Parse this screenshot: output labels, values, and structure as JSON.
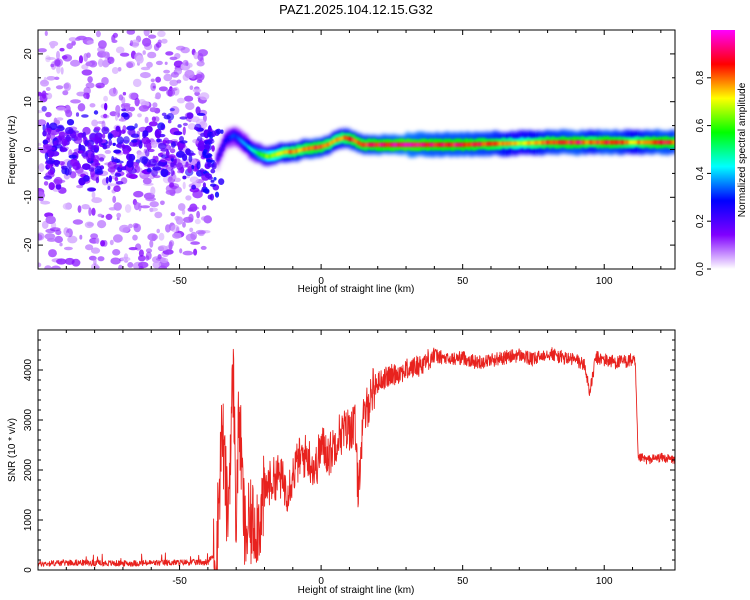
{
  "figure": {
    "title": "PAZ1.2025.104.12.15.G32"
  },
  "chart_data": [
    {
      "type": "heatmap",
      "title": "PAZ1.2025.104.12.15.G32",
      "xlabel": "Height of straight line (km)",
      "ylabel": "Frequency (Hz)",
      "xlim": [
        -100,
        125
      ],
      "ylim": [
        -25,
        25
      ],
      "xticks": [
        -50,
        0,
        50,
        100
      ],
      "yticks": [
        -20,
        -10,
        0,
        10,
        20
      ],
      "grid": false,
      "colorbar": {
        "label": "Normalized spectral amplitude",
        "range": [
          0,
          1
        ],
        "ticks": [
          0.0,
          0.2,
          0.4,
          0.6,
          0.8
        ],
        "colors": [
          "#ffffff",
          "#8000ff",
          "#0000ff",
          "#00ffff",
          "#00ff00",
          "#ffff00",
          "#ff0000",
          "#ff00ff"
        ]
      },
      "ridge": {
        "x": [
          -37,
          -34,
          -31,
          -28,
          -25,
          -22,
          -19,
          -16,
          -13,
          -10,
          -7,
          -4,
          -1,
          2,
          5,
          8,
          11,
          14,
          20,
          30,
          40,
          50,
          60,
          70,
          80,
          90,
          95,
          100,
          105,
          110,
          115,
          120,
          125
        ],
        "frequency": [
          -2,
          2,
          3,
          1.5,
          0,
          -1,
          -1.5,
          -1,
          -0.5,
          -0.5,
          0,
          0.3,
          0.5,
          1,
          2,
          2.5,
          2,
          1,
          1,
          1,
          1,
          1,
          1.2,
          1.3,
          1.5,
          1.5,
          1.5,
          1.5,
          1.5,
          1.5,
          1.5,
          1.5,
          1.5
        ],
        "amplitude": [
          0.25,
          0.3,
          0.35,
          0.4,
          0.5,
          0.6,
          0.7,
          0.75,
          0.8,
          0.85,
          0.85,
          0.9,
          0.9,
          0.85,
          0.8,
          0.85,
          0.9,
          0.9,
          0.95,
          1.0,
          0.95,
          0.95,
          0.9,
          0.75,
          0.9,
          0.95,
          0.85,
          0.95,
          0.9,
          0.8,
          0.9,
          0.95,
          0.9
        ]
      }
    },
    {
      "type": "line",
      "xlabel": "Height of straight line (km)",
      "ylabel": "SNR (10 * v/v)",
      "xlim": [
        -100,
        125
      ],
      "ylim": [
        0,
        4800
      ],
      "xticks": [
        -50,
        0,
        50,
        100
      ],
      "yticks": [
        0,
        1000,
        2000,
        3000,
        4000
      ],
      "grid": false,
      "line_color": "#e8221e",
      "series": [
        {
          "x": [
            -100,
            -90,
            -80,
            -70,
            -60,
            -50,
            -40,
            -37,
            -35,
            -33,
            -31,
            -30,
            -29,
            -27,
            -25,
            -22,
            -19,
            -15,
            -12,
            -8,
            -5,
            -2,
            0,
            3,
            6,
            9,
            12,
            13,
            15,
            18,
            21,
            25,
            30,
            35,
            40,
            45,
            50,
            55,
            60,
            65,
            70,
            75,
            80,
            85,
            90,
            93,
            95,
            97,
            100,
            105,
            110,
            111,
            112,
            113,
            115,
            120,
            125
          ],
          "y": [
            120,
            150,
            140,
            130,
            140,
            150,
            160,
            350,
            2900,
            1000,
            4000,
            900,
            3200,
            700,
            900,
            1000,
            1700,
            1900,
            1600,
            2200,
            2300,
            2000,
            2500,
            2300,
            2700,
            2800,
            2900,
            1600,
            3000,
            3600,
            3800,
            3900,
            4000,
            4100,
            4300,
            4200,
            4250,
            4150,
            4200,
            4250,
            4300,
            4200,
            4350,
            4250,
            4200,
            4100,
            3550,
            4250,
            4200,
            4150,
            4200,
            4100,
            2200,
            2250,
            2200,
            2250,
            2200
          ]
        }
      ]
    }
  ]
}
